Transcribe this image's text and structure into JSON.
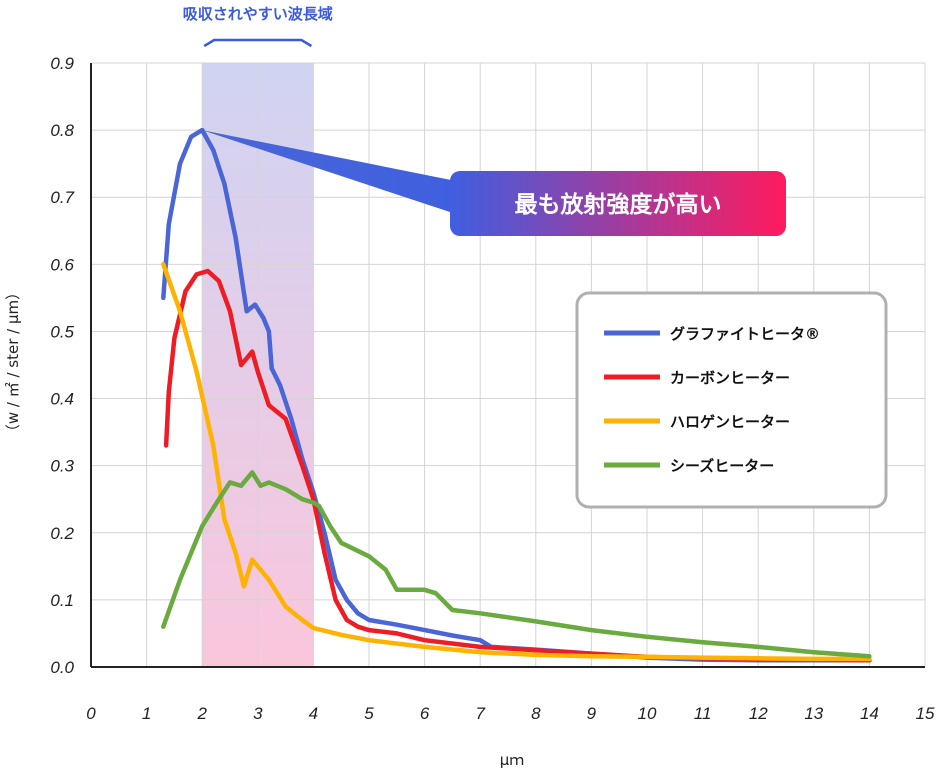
{
  "chart_data": {
    "type": "line",
    "title": "",
    "xlabel": "μｍ",
    "ylabel": "（w / ㎡ / ster / μm）",
    "xlim": [
      0,
      15
    ],
    "ylim": [
      0,
      0.9
    ],
    "x_ticks": [
      "0",
      "1",
      "2",
      "3",
      "4",
      "5",
      "6",
      "7",
      "8",
      "9",
      "10",
      "11",
      "12",
      "13",
      "14",
      "15"
    ],
    "y_ticks": [
      "0.0",
      "0.1",
      "0.2",
      "0.3",
      "0.4",
      "0.5",
      "0.6",
      "0.7",
      "0.8",
      "0.9"
    ],
    "grid": true,
    "legend_position": "right",
    "absorption_band": {
      "label": "吸収されやすい波長域",
      "x_range": [
        2,
        4
      ]
    },
    "callout": {
      "text": "最も放射強度が高い",
      "point": [
        2,
        0.8
      ]
    },
    "series": [
      {
        "name": "グラファイトヒータ®",
        "color": "#4a66d6",
        "points": [
          [
            1.3,
            0.55
          ],
          [
            1.4,
            0.66
          ],
          [
            1.6,
            0.75
          ],
          [
            1.8,
            0.79
          ],
          [
            2.0,
            0.8
          ],
          [
            2.2,
            0.77
          ],
          [
            2.4,
            0.72
          ],
          [
            2.6,
            0.64
          ],
          [
            2.8,
            0.53
          ],
          [
            2.95,
            0.54
          ],
          [
            3.1,
            0.52
          ],
          [
            3.2,
            0.5
          ],
          [
            3.25,
            0.445
          ],
          [
            3.4,
            0.42
          ],
          [
            3.6,
            0.37
          ],
          [
            3.8,
            0.31
          ],
          [
            4.0,
            0.26
          ],
          [
            4.2,
            0.2
          ],
          [
            4.4,
            0.13
          ],
          [
            4.6,
            0.1
          ],
          [
            4.8,
            0.08
          ],
          [
            5.0,
            0.07
          ],
          [
            5.5,
            0.063
          ],
          [
            6.0,
            0.055
          ],
          [
            6.5,
            0.047
          ],
          [
            7.0,
            0.04
          ],
          [
            7.2,
            0.03
          ],
          [
            8,
            0.026
          ],
          [
            9,
            0.02
          ],
          [
            10,
            0.014
          ],
          [
            11,
            0.011
          ],
          [
            12,
            0.01
          ],
          [
            13,
            0.01
          ],
          [
            14,
            0.01
          ]
        ]
      },
      {
        "name": "カーボンヒーター",
        "color": "#ee1c24",
        "points": [
          [
            1.35,
            0.33
          ],
          [
            1.4,
            0.41
          ],
          [
            1.5,
            0.49
          ],
          [
            1.7,
            0.56
          ],
          [
            1.9,
            0.585
          ],
          [
            2.1,
            0.59
          ],
          [
            2.3,
            0.575
          ],
          [
            2.5,
            0.53
          ],
          [
            2.7,
            0.45
          ],
          [
            2.8,
            0.46
          ],
          [
            2.9,
            0.47
          ],
          [
            3.0,
            0.44
          ],
          [
            3.2,
            0.39
          ],
          [
            3.5,
            0.37
          ],
          [
            3.8,
            0.3
          ],
          [
            4.0,
            0.25
          ],
          [
            4.2,
            0.17
          ],
          [
            4.4,
            0.1
          ],
          [
            4.6,
            0.07
          ],
          [
            4.8,
            0.06
          ],
          [
            5.0,
            0.055
          ],
          [
            5.5,
            0.05
          ],
          [
            6,
            0.04
          ],
          [
            7,
            0.03
          ],
          [
            8,
            0.025
          ],
          [
            9,
            0.02
          ],
          [
            10,
            0.015
          ],
          [
            11,
            0.013
          ],
          [
            12,
            0.012
          ],
          [
            13,
            0.011
          ],
          [
            14,
            0.01
          ]
        ]
      },
      {
        "name": "ハロゲンヒーター",
        "color": "#ffb300",
        "points": [
          [
            1.3,
            0.6
          ],
          [
            1.6,
            0.53
          ],
          [
            1.9,
            0.44
          ],
          [
            2.2,
            0.33
          ],
          [
            2.4,
            0.22
          ],
          [
            2.6,
            0.17
          ],
          [
            2.75,
            0.12
          ],
          [
            2.9,
            0.16
          ],
          [
            3.2,
            0.13
          ],
          [
            3.5,
            0.09
          ],
          [
            3.8,
            0.07
          ],
          [
            4.0,
            0.058
          ],
          [
            4.5,
            0.048
          ],
          [
            5,
            0.04
          ],
          [
            6,
            0.03
          ],
          [
            7,
            0.022
          ],
          [
            8,
            0.018
          ],
          [
            9,
            0.016
          ],
          [
            10,
            0.015
          ],
          [
            11,
            0.014
          ],
          [
            12,
            0.013
          ],
          [
            13,
            0.012
          ],
          [
            14,
            0.012
          ]
        ]
      },
      {
        "name": "シーズヒーター",
        "color": "#6aaa3f",
        "points": [
          [
            1.3,
            0.06
          ],
          [
            1.6,
            0.13
          ],
          [
            2.0,
            0.21
          ],
          [
            2.3,
            0.25
          ],
          [
            2.5,
            0.275
          ],
          [
            2.7,
            0.27
          ],
          [
            2.9,
            0.29
          ],
          [
            3.05,
            0.27
          ],
          [
            3.2,
            0.275
          ],
          [
            3.5,
            0.265
          ],
          [
            3.8,
            0.25
          ],
          [
            4.0,
            0.245
          ],
          [
            4.1,
            0.24
          ],
          [
            4.3,
            0.21
          ],
          [
            4.5,
            0.185
          ],
          [
            5.0,
            0.165
          ],
          [
            5.3,
            0.145
          ],
          [
            5.5,
            0.115
          ],
          [
            6.0,
            0.115
          ],
          [
            6.2,
            0.11
          ],
          [
            6.5,
            0.085
          ],
          [
            7,
            0.08
          ],
          [
            8,
            0.068
          ],
          [
            9,
            0.055
          ],
          [
            10,
            0.045
          ],
          [
            11,
            0.037
          ],
          [
            12,
            0.03
          ],
          [
            13,
            0.022
          ],
          [
            14,
            0.016
          ]
        ]
      }
    ]
  }
}
